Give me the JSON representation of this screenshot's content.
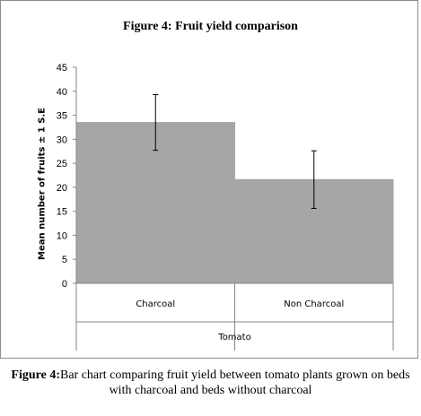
{
  "chart_data": {
    "type": "bar",
    "title": "Figure 4: Fruit yield comparison",
    "ylabel": "Mean number of fruits ± 1 S.E",
    "xlabel": "Tomato",
    "categories": [
      "Charcoal",
      "Non Charcoal"
    ],
    "values": [
      33.5,
      21.6
    ],
    "error": [
      5.8,
      6.0
    ],
    "ylim": [
      0,
      45
    ],
    "yticks": [
      0,
      5,
      10,
      15,
      20,
      25,
      30,
      35,
      40,
      45
    ],
    "grid": false,
    "legend": "none",
    "bar_color": "#a6a6a6"
  },
  "caption": {
    "label": "Figure 4:",
    "text": "Bar chart comparing fruit yield between tomato plants grown on beds with charcoal and beds without charcoal"
  }
}
